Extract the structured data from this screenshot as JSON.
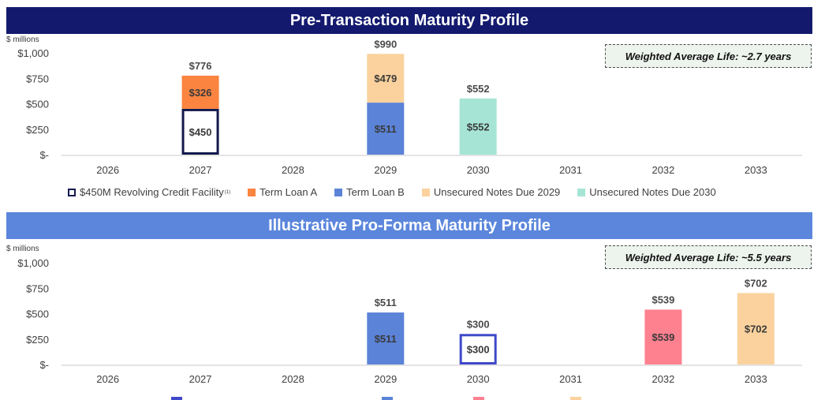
{
  "chart_data": [
    {
      "type": "bar",
      "stacked": true,
      "title": "Pre-Transaction Maturity Profile",
      "unit_label": "$ millions",
      "annotation": "Weighted Average Life: ~2.7 years",
      "ylim": [
        0,
        1000
      ],
      "yticks": [
        "$1,000",
        "$750",
        "$500",
        "$250",
        "$-"
      ],
      "categories": [
        "2026",
        "2027",
        "2028",
        "2029",
        "2030",
        "2031",
        "2032",
        "2033"
      ],
      "series": [
        {
          "name": "$450M Revolving Credit Facility",
          "footnote": "(1)",
          "color": "#ffffff",
          "border": "#131a4d",
          "values": [
            0,
            450,
            0,
            0,
            0,
            0,
            0,
            0
          ],
          "labels": [
            "",
            "$450",
            "",
            "",
            "",
            "",
            "",
            ""
          ]
        },
        {
          "name": "Term Loan A",
          "footnote": "",
          "color": "#fb8440",
          "border": "",
          "values": [
            0,
            326,
            0,
            0,
            0,
            0,
            0,
            0
          ],
          "labels": [
            "",
            "$326",
            "",
            "",
            "",
            "",
            "",
            ""
          ]
        },
        {
          "name": "Term Loan B",
          "footnote": "",
          "color": "#5b83d8",
          "border": "",
          "values": [
            0,
            0,
            0,
            511,
            0,
            0,
            0,
            0
          ],
          "labels": [
            "",
            "",
            "",
            "$511",
            "",
            "",
            "",
            ""
          ]
        },
        {
          "name": "Unsecured Notes Due 2029",
          "footnote": "",
          "color": "#fbd29e",
          "border": "",
          "values": [
            0,
            0,
            0,
            479,
            0,
            0,
            0,
            0
          ],
          "labels": [
            "",
            "",
            "",
            "$479",
            "",
            "",
            "",
            ""
          ]
        },
        {
          "name": "Unsecured Notes Due 2030",
          "footnote": "",
          "color": "#a6e5d6",
          "border": "",
          "values": [
            0,
            0,
            0,
            0,
            552,
            0,
            0,
            0
          ],
          "labels": [
            "",
            "",
            "",
            "",
            "$552",
            "",
            "",
            ""
          ]
        }
      ],
      "totals": [
        "",
        "$776",
        "",
        "$990",
        "$552",
        "",
        "",
        ""
      ]
    },
    {
      "type": "bar",
      "stacked": true,
      "title": "Illustrative Pro-Forma Maturity Profile",
      "unit_label": "$ millions",
      "annotation": "Weighted Average Life: ~5.5 years",
      "ylim": [
        0,
        1000
      ],
      "yticks": [
        "$1,000",
        "$750",
        "$500",
        "$250",
        "$-"
      ],
      "categories": [
        "2026",
        "2027",
        "2028",
        "2029",
        "2030",
        "2031",
        "2032",
        "2033"
      ],
      "series": [
        {
          "name": "",
          "footnote": "",
          "color": "#5b83d8",
          "border": "",
          "values": [
            0,
            0,
            0,
            511,
            0,
            0,
            0,
            0
          ],
          "labels": [
            "",
            "",
            "",
            "$511",
            "",
            "",
            "",
            ""
          ]
        },
        {
          "name": "",
          "footnote": "",
          "color": "#ffffff",
          "border": "#3f49c9",
          "values": [
            0,
            0,
            0,
            0,
            300,
            0,
            0,
            0
          ],
          "labels": [
            "",
            "",
            "",
            "",
            "$300",
            "",
            "",
            ""
          ]
        },
        {
          "name": "",
          "footnote": "",
          "color": "#fe8190",
          "border": "",
          "values": [
            0,
            0,
            0,
            0,
            0,
            0,
            539,
            0
          ],
          "labels": [
            "",
            "",
            "",
            "",
            "",
            "",
            "$539",
            ""
          ]
        },
        {
          "name": "",
          "footnote": "",
          "color": "#fbd29e",
          "border": "",
          "values": [
            0,
            0,
            0,
            0,
            0,
            0,
            0,
            702
          ],
          "labels": [
            "",
            "",
            "",
            "",
            "",
            "",
            "",
            "$702"
          ]
        }
      ],
      "totals": [
        "",
        "",
        "",
        "$511",
        "$300",
        "",
        "$539",
        "$702"
      ],
      "legend_swatch_colors": [
        "#3f49c9",
        "#5b83d8",
        "#fe8190",
        "#fbd29e"
      ]
    }
  ]
}
